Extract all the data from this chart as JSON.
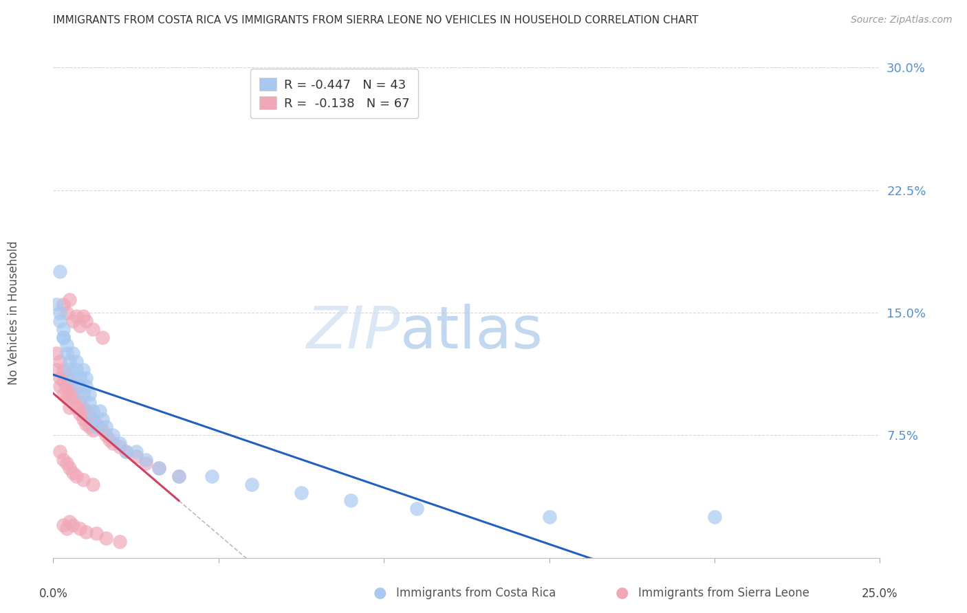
{
  "title": "IMMIGRANTS FROM COSTA RICA VS IMMIGRANTS FROM SIERRA LEONE NO VEHICLES IN HOUSEHOLD CORRELATION CHART",
  "source": "Source: ZipAtlas.com",
  "ylabel": "No Vehicles in Household",
  "ytick_labels": [
    "30.0%",
    "22.5%",
    "15.0%",
    "7.5%"
  ],
  "ytick_values": [
    0.3,
    0.225,
    0.15,
    0.075
  ],
  "xlim": [
    0.0,
    0.25
  ],
  "ylim": [
    0.0,
    0.3
  ],
  "xtick_positions": [
    0.0,
    0.05,
    0.1,
    0.15,
    0.2,
    0.25
  ],
  "legend_cr_label": "R = -0.447   N = 43",
  "legend_sl_label": "R =  -0.138   N = 67",
  "legend_labels_bottom": [
    "Immigrants from Costa Rica",
    "Immigrants from Sierra Leone"
  ],
  "costa_rica_color": "#a8c8f0",
  "sierra_leone_color": "#f0a8b8",
  "trend_costa_rica_color": "#2060c0",
  "trend_sierra_leone_color": "#d04060",
  "watermark_zip": "ZIP",
  "watermark_atlas": "atlas",
  "background_color": "#ffffff",
  "grid_color": "#d8d8d8",
  "costa_rica_x": [
    0.001,
    0.002,
    0.002,
    0.003,
    0.003,
    0.004,
    0.004,
    0.005,
    0.005,
    0.006,
    0.006,
    0.007,
    0.007,
    0.008,
    0.008,
    0.009,
    0.009,
    0.01,
    0.01,
    0.011,
    0.011,
    0.012,
    0.012,
    0.013,
    0.014,
    0.015,
    0.016,
    0.018,
    0.02,
    0.022,
    0.025,
    0.028,
    0.032,
    0.038,
    0.048,
    0.06,
    0.075,
    0.09,
    0.11,
    0.15,
    0.002,
    0.003,
    0.2
  ],
  "costa_rica_y": [
    0.155,
    0.15,
    0.145,
    0.14,
    0.135,
    0.13,
    0.125,
    0.12,
    0.115,
    0.11,
    0.125,
    0.12,
    0.115,
    0.11,
    0.105,
    0.1,
    0.115,
    0.11,
    0.105,
    0.1,
    0.095,
    0.09,
    0.085,
    0.08,
    0.09,
    0.085,
    0.08,
    0.075,
    0.07,
    0.065,
    0.065,
    0.06,
    0.055,
    0.05,
    0.05,
    0.045,
    0.04,
    0.035,
    0.03,
    0.025,
    0.175,
    0.135,
    0.025
  ],
  "sierra_leone_x": [
    0.001,
    0.001,
    0.002,
    0.002,
    0.002,
    0.003,
    0.003,
    0.003,
    0.004,
    0.004,
    0.004,
    0.005,
    0.005,
    0.005,
    0.006,
    0.006,
    0.007,
    0.007,
    0.008,
    0.008,
    0.009,
    0.009,
    0.01,
    0.01,
    0.011,
    0.011,
    0.012,
    0.012,
    0.013,
    0.014,
    0.015,
    0.016,
    0.017,
    0.018,
    0.02,
    0.022,
    0.025,
    0.028,
    0.032,
    0.038,
    0.003,
    0.004,
    0.005,
    0.006,
    0.007,
    0.008,
    0.009,
    0.01,
    0.012,
    0.015,
    0.002,
    0.003,
    0.004,
    0.005,
    0.006,
    0.007,
    0.009,
    0.012,
    0.003,
    0.004,
    0.005,
    0.006,
    0.008,
    0.01,
    0.013,
    0.016,
    0.02
  ],
  "sierra_leone_y": [
    0.125,
    0.115,
    0.12,
    0.11,
    0.105,
    0.115,
    0.108,
    0.1,
    0.112,
    0.105,
    0.098,
    0.108,
    0.1,
    0.092,
    0.105,
    0.098,
    0.1,
    0.092,
    0.095,
    0.088,
    0.092,
    0.085,
    0.09,
    0.082,
    0.088,
    0.08,
    0.085,
    0.078,
    0.082,
    0.08,
    0.078,
    0.075,
    0.072,
    0.07,
    0.068,
    0.065,
    0.062,
    0.058,
    0.055,
    0.05,
    0.155,
    0.15,
    0.158,
    0.145,
    0.148,
    0.142,
    0.148,
    0.145,
    0.14,
    0.135,
    0.065,
    0.06,
    0.058,
    0.055,
    0.052,
    0.05,
    0.048,
    0.045,
    0.02,
    0.018,
    0.022,
    0.02,
    0.018,
    0.016,
    0.015,
    0.012,
    0.01
  ]
}
